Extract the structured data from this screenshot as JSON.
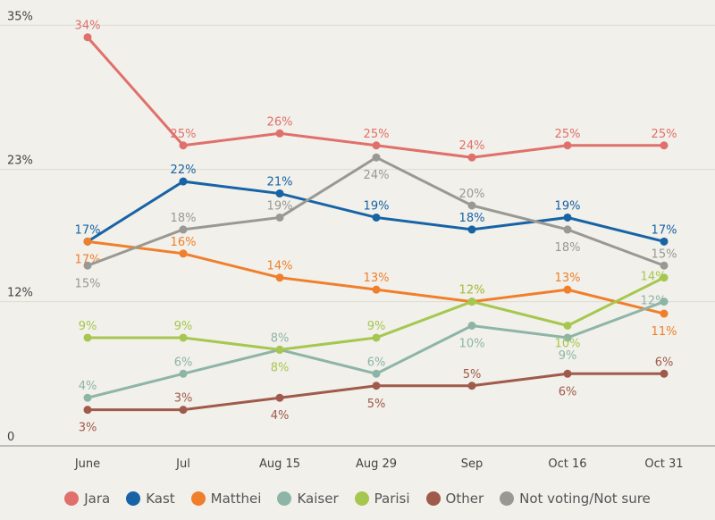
{
  "chart_data": {
    "type": "line",
    "categories": [
      "June",
      "Jul",
      "Aug 15",
      "Aug 29",
      "Sep",
      "Oct 16",
      "Oct 31"
    ],
    "y_ticks": [
      "0",
      "12%",
      "23%",
      "35%"
    ],
    "y_tick_values": [
      0,
      12,
      23,
      35
    ],
    "ylim": [
      0,
      35
    ],
    "grid": true,
    "legend_placement": "bottom",
    "series": [
      {
        "name": "Jara",
        "color": "#e0706b",
        "values": [
          34,
          25,
          26,
          25,
          24,
          25,
          25
        ]
      },
      {
        "name": "Kast",
        "color": "#1763a6",
        "values": [
          17,
          22,
          21,
          19,
          18,
          19,
          17
        ]
      },
      {
        "name": "Matthei",
        "color": "#f07f2c",
        "values": [
          17,
          16,
          14,
          13,
          12,
          13,
          11
        ]
      },
      {
        "name": "Kaiser",
        "color": "#8db5a7",
        "values": [
          4,
          6,
          8,
          6,
          10,
          9,
          12
        ]
      },
      {
        "name": "Parisi",
        "color": "#a6c74f",
        "values": [
          9,
          9,
          8,
          9,
          12,
          10,
          14
        ]
      },
      {
        "name": "Other",
        "color": "#a05a4b",
        "values": [
          3,
          3,
          4,
          5,
          5,
          6,
          6
        ]
      },
      {
        "name": "Not voting/Not sure",
        "color": "#9a9893",
        "values": [
          15,
          18,
          19,
          24,
          20,
          18,
          15
        ]
      }
    ]
  }
}
